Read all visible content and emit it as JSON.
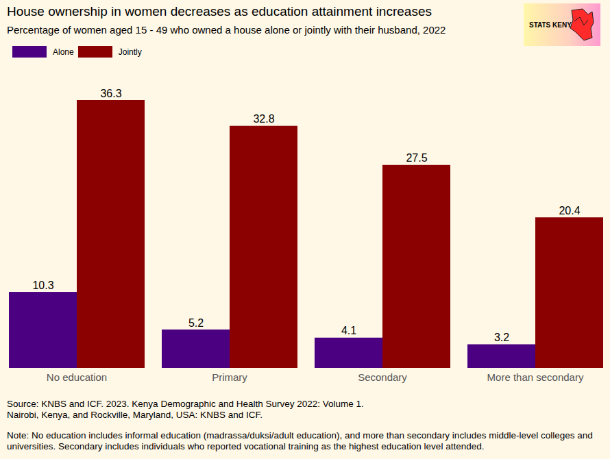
{
  "chart_data": {
    "type": "bar",
    "title": "House ownership in women decreases as education attainment increases",
    "subtitle": "Percentage of women aged 15 - 49 who owned a house alone or jointly with their husband, 2022",
    "logo": "STATS KENYA",
    "categories": [
      "No education",
      "Primary",
      "Secondary",
      "More than secondary"
    ],
    "series": [
      {
        "name": "Alone",
        "color": "#4b0082",
        "values": [
          10.3,
          5.2,
          4.1,
          3.2
        ]
      },
      {
        "name": "Jointly",
        "color": "#8b0000",
        "values": [
          36.3,
          32.8,
          27.5,
          20.4
        ]
      }
    ],
    "ylim": [
      0,
      36.3
    ],
    "data_labels": true,
    "tick_labels": "x",
    "legend": "top-left",
    "source": [
      "Source: KNBS and ICF. 2023. Kenya Demographic and Health Survey 2022: Volume 1.",
      "Nairobi, Kenya, and Rockville, Maryland, USA: KNBS and ICF."
    ],
    "note": "Note: No education includes informal education (madrassa/duksi/adult education), and more than secondary includes middle-level colleges and universities. Secondary includes individuals who reported vocational training as the highest education level attended."
  }
}
